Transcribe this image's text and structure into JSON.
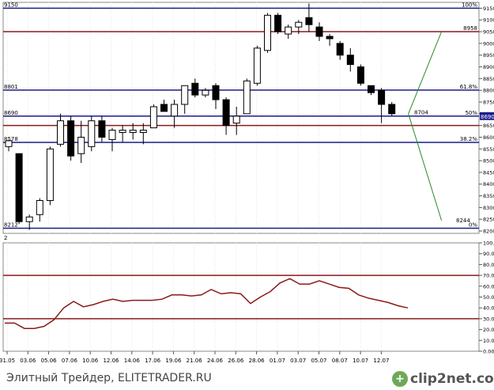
{
  "chart_data": [
    {
      "type": "candlestick",
      "title": "",
      "x_tick_labels": [
        "31.05",
        "03.06",
        "05.06",
        "07.06",
        "10.06",
        "12.06",
        "14.06",
        "17.06",
        "19.06",
        "21.06",
        "24.06",
        "26.06",
        "28.06",
        "01.07",
        "03.07",
        "05.07",
        "08.07",
        "10.07",
        "12.07"
      ],
      "y_axis_ticks": [
        8200,
        8250,
        8300,
        8350,
        8400,
        8450,
        8500,
        8550,
        8600,
        8650,
        8700,
        8750,
        8800,
        8850,
        8900,
        8950,
        9000,
        9050,
        9100,
        9150
      ],
      "ylim": [
        8190,
        9175
      ],
      "candles": [
        {
          "o": 8560,
          "h": 8590,
          "l": 8540,
          "c": 8585
        },
        {
          "o": 8530,
          "h": 8530,
          "l": 8230,
          "c": 8240
        },
        {
          "o": 8240,
          "h": 8270,
          "l": 8205,
          "c": 8260
        },
        {
          "o": 8270,
          "h": 8340,
          "l": 8240,
          "c": 8330
        },
        {
          "o": 8330,
          "h": 8560,
          "l": 8310,
          "c": 8550
        },
        {
          "o": 8570,
          "h": 8700,
          "l": 8560,
          "c": 8670
        },
        {
          "o": 8670,
          "h": 8690,
          "l": 8500,
          "c": 8520
        },
        {
          "o": 8530,
          "h": 8670,
          "l": 8490,
          "c": 8600
        },
        {
          "o": 8560,
          "h": 8690,
          "l": 8540,
          "c": 8670
        },
        {
          "o": 8670,
          "h": 8690,
          "l": 8580,
          "c": 8600
        },
        {
          "o": 8590,
          "h": 8640,
          "l": 8540,
          "c": 8630
        },
        {
          "o": 8620,
          "h": 8650,
          "l": 8580,
          "c": 8630
        },
        {
          "o": 8620,
          "h": 8660,
          "l": 8590,
          "c": 8630
        },
        {
          "o": 8620,
          "h": 8660,
          "l": 8570,
          "c": 8630
        },
        {
          "o": 8640,
          "h": 8740,
          "l": 8640,
          "c": 8730
        },
        {
          "o": 8740,
          "h": 8760,
          "l": 8710,
          "c": 8710
        },
        {
          "o": 8690,
          "h": 8760,
          "l": 8640,
          "c": 8740
        },
        {
          "o": 8740,
          "h": 8820,
          "l": 8700,
          "c": 8820
        },
        {
          "o": 8830,
          "h": 8850,
          "l": 8770,
          "c": 8780
        },
        {
          "o": 8780,
          "h": 8810,
          "l": 8770,
          "c": 8800
        },
        {
          "o": 8820,
          "h": 8830,
          "l": 8720,
          "c": 8760
        },
        {
          "o": 8760,
          "h": 8770,
          "l": 8610,
          "c": 8650
        },
        {
          "o": 8660,
          "h": 8730,
          "l": 8610,
          "c": 8690
        },
        {
          "o": 8700,
          "h": 8850,
          "l": 8700,
          "c": 8840
        },
        {
          "o": 8830,
          "h": 8990,
          "l": 8820,
          "c": 8980
        },
        {
          "o": 8970,
          "h": 9130,
          "l": 8960,
          "c": 9120
        },
        {
          "o": 9120,
          "h": 9130,
          "l": 9040,
          "c": 9050
        },
        {
          "o": 9040,
          "h": 9080,
          "l": 9020,
          "c": 9070
        },
        {
          "o": 9070,
          "h": 9100,
          "l": 9040,
          "c": 9090
        },
        {
          "o": 9110,
          "h": 9170,
          "l": 9050,
          "c": 9080
        },
        {
          "o": 9070,
          "h": 9090,
          "l": 9010,
          "c": 9030
        },
        {
          "o": 9030,
          "h": 9040,
          "l": 8990,
          "c": 9020
        },
        {
          "o": 9000,
          "h": 9010,
          "l": 8930,
          "c": 8950
        },
        {
          "o": 8950,
          "h": 8980,
          "l": 8880,
          "c": 8910
        },
        {
          "o": 8900,
          "h": 8910,
          "l": 8820,
          "c": 8830
        },
        {
          "o": 8820,
          "h": 8820,
          "l": 8780,
          "c": 8790
        },
        {
          "o": 8800,
          "h": 8810,
          "l": 8660,
          "c": 8740
        },
        {
          "o": 8740,
          "h": 8750,
          "l": 8690,
          "c": 8700
        }
      ],
      "fib_levels": [
        {
          "price": 9150,
          "left_label": "9150",
          "right_label": "100%",
          "color": "#1c1c8c"
        },
        {
          "price": 9050,
          "left_label": "",
          "right_label": "8958",
          "color": "#8b1a1a"
        },
        {
          "price": 8801,
          "left_label": "8801",
          "right_label": "61.8%",
          "color": "#1c1c8c"
        },
        {
          "price": 8690,
          "left_label": "8690",
          "right_label": "50%",
          "color": "#1c1c8c"
        },
        {
          "price": 8650,
          "left_label": "",
          "right_label": "",
          "color": "#8b1a1a"
        },
        {
          "price": 8578,
          "left_label": "8578",
          "right_label": "38.2%",
          "color": "#1c1c8c"
        },
        {
          "price": 8212,
          "left_label": "8212",
          "right_label": "0%",
          "color": "#1c1c8c"
        }
      ],
      "price_markers": [
        {
          "label": "8704",
          "price": 8704
        },
        {
          "label": "8244",
          "price": 8244
        }
      ],
      "fib_fan": {
        "color": "#2a8a2a",
        "apex": {
          "index": 38.6,
          "price": 8700
        },
        "upper": {
          "index": 41.8,
          "price": 9050
        },
        "lower": {
          "index": 41.8,
          "price": 8245
        }
      },
      "current_price_label": "8690"
    },
    {
      "type": "line",
      "panel_label": "2",
      "y_axis_ticks": [
        "0.00",
        "10.00",
        "20.00",
        "30.00",
        "40.00",
        "50.00",
        "60.00",
        "70.00",
        "80.00",
        "90.00",
        "100.00"
      ],
      "ylim": [
        0,
        100
      ],
      "x_tick_labels": [
        "31.05",
        "03.06",
        "05.06",
        "07.06",
        "10.06",
        "12.06",
        "14.06",
        "17.06",
        "19.06",
        "21.06",
        "24.06",
        "26.06",
        "28.06",
        "01.07",
        "03.07",
        "05.07",
        "08.07",
        "10.07",
        "12.07"
      ],
      "hlines": [
        {
          "value": 70,
          "color": "#8b1a1a"
        },
        {
          "value": 30,
          "color": "#8b1a1a"
        }
      ],
      "line_color": "#8b1a1a",
      "series": [
        {
          "values": [
            26,
            26,
            21,
            21,
            23,
            29,
            40,
            46,
            41,
            43,
            46,
            48,
            46,
            47,
            47,
            47,
            48,
            52,
            52,
            51,
            52,
            57,
            53,
            54,
            53,
            44,
            50,
            55,
            63,
            67,
            62,
            62,
            65,
            62,
            59,
            58,
            52,
            49,
            47,
            45,
            42,
            40
          ]
        }
      ]
    }
  ],
  "footer": {
    "credit": "Элитный Трейдер, ELITETRADER.RU",
    "logo_icon": "+",
    "logo_text": "clip2net.com"
  }
}
